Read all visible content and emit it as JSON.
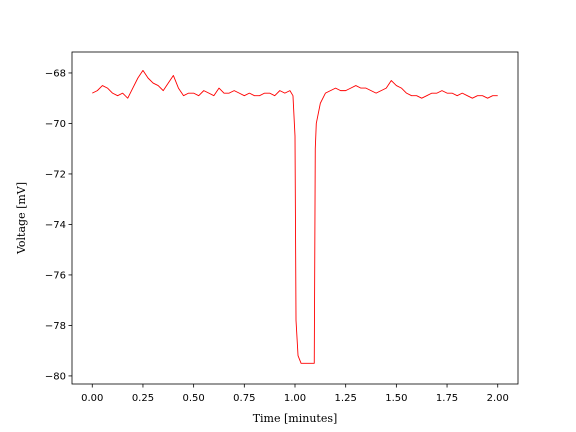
{
  "chart_data": {
    "type": "line",
    "x_label": "Time [minutes]",
    "y_label": "Voltage [mV]",
    "xlim": [
      -0.1,
      2.1
    ],
    "ylim": [
      -80.32,
      -67.17
    ],
    "xticks": [
      {
        "value": 0,
        "label": "0.00"
      },
      {
        "value": 0.25,
        "label": "0.25"
      },
      {
        "value": 0.5,
        "label": "0.50"
      },
      {
        "value": 0.75,
        "label": "0.75"
      },
      {
        "value": 1,
        "label": "1.00"
      },
      {
        "value": 1.25,
        "label": "1.25"
      },
      {
        "value": 1.5,
        "label": "1.50"
      },
      {
        "value": 1.75,
        "label": "1.75"
      },
      {
        "value": 2,
        "label": "2.00"
      }
    ],
    "yticks": [
      {
        "value": -80,
        "label": "−80"
      },
      {
        "value": -78,
        "label": "−78"
      },
      {
        "value": -76,
        "label": "−76"
      },
      {
        "value": -74,
        "label": "−74"
      },
      {
        "value": -72,
        "label": "−72"
      },
      {
        "value": -70,
        "label": "−70"
      },
      {
        "value": -68,
        "label": "−68"
      }
    ],
    "grid": false,
    "series": [
      {
        "color": "#ff0000",
        "x": [
          0,
          0.025,
          0.05,
          0.075,
          0.1,
          0.125,
          0.15,
          0.175,
          0.2,
          0.225,
          0.25,
          0.275,
          0.3,
          0.325,
          0.35,
          0.375,
          0.4,
          0.425,
          0.45,
          0.475,
          0.5,
          0.525,
          0.55,
          0.575,
          0.6,
          0.625,
          0.65,
          0.675,
          0.7,
          0.725,
          0.75,
          0.775,
          0.8,
          0.825,
          0.85,
          0.875,
          0.9,
          0.925,
          0.95,
          0.975,
          0.99,
          1.0,
          1.005,
          1.015,
          1.03,
          1.05,
          1.07,
          1.095,
          1.1,
          1.105,
          1.125,
          1.15,
          1.175,
          1.2,
          1.225,
          1.25,
          1.275,
          1.3,
          1.325,
          1.35,
          1.375,
          1.4,
          1.425,
          1.45,
          1.475,
          1.5,
          1.525,
          1.55,
          1.575,
          1.6,
          1.625,
          1.65,
          1.675,
          1.7,
          1.725,
          1.75,
          1.775,
          1.8,
          1.825,
          1.85,
          1.875,
          1.9,
          1.925,
          1.95,
          1.975,
          2.0
        ],
        "values": [
          -68.8,
          -68.7,
          -68.5,
          -68.6,
          -68.8,
          -68.9,
          -68.8,
          -69.0,
          -68.6,
          -68.2,
          -67.9,
          -68.2,
          -68.4,
          -68.5,
          -68.7,
          -68.4,
          -68.1,
          -68.6,
          -68.9,
          -68.8,
          -68.8,
          -68.9,
          -68.7,
          -68.8,
          -68.9,
          -68.6,
          -68.8,
          -68.8,
          -68.7,
          -68.8,
          -68.9,
          -68.8,
          -68.9,
          -68.9,
          -68.8,
          -68.8,
          -68.9,
          -68.7,
          -68.8,
          -68.7,
          -68.9,
          -70.5,
          -77.8,
          -79.2,
          -79.5,
          -79.5,
          -79.5,
          -79.5,
          -71.0,
          -70.0,
          -69.2,
          -68.8,
          -68.7,
          -68.6,
          -68.7,
          -68.7,
          -68.6,
          -68.5,
          -68.6,
          -68.6,
          -68.7,
          -68.8,
          -68.7,
          -68.6,
          -68.3,
          -68.5,
          -68.6,
          -68.8,
          -68.9,
          -68.9,
          -69.0,
          -68.9,
          -68.8,
          -68.8,
          -68.7,
          -68.8,
          -68.8,
          -68.9,
          -68.8,
          -68.9,
          -69.0,
          -68.9,
          -68.9,
          -69.0,
          -68.9,
          -68.9
        ]
      }
    ]
  }
}
